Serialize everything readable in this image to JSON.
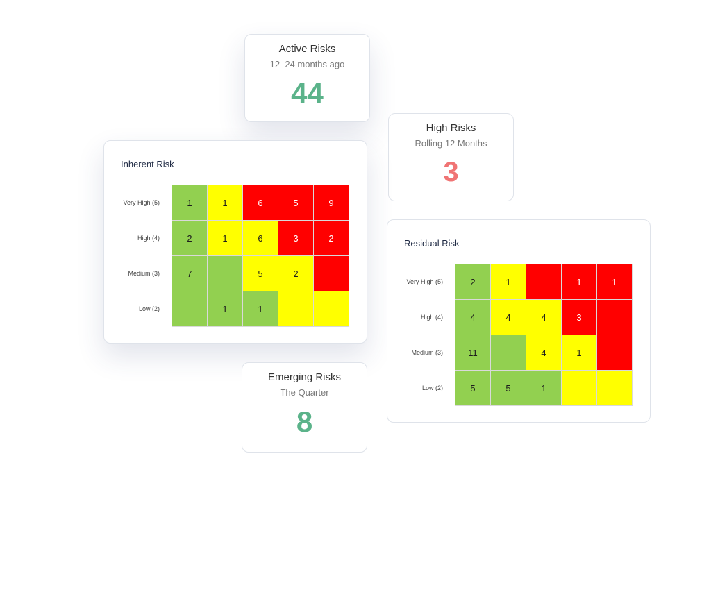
{
  "colors": {
    "green": "#92d050",
    "yellow": "#ffff00",
    "red": "#ff0000",
    "stat_green": "#5bb38a",
    "stat_red": "#f07474"
  },
  "active_risks": {
    "title": "Active Risks",
    "subtitle": "12–24 months ago",
    "value": "44"
  },
  "high_risks": {
    "title": "High Risks",
    "subtitle": "Rolling 12 Months",
    "value": "3"
  },
  "emerging_risks": {
    "title": "Emerging Risks",
    "subtitle": "The Quarter",
    "value": "8"
  },
  "inherent": {
    "title": "Inherent Risk",
    "rows": [
      {
        "label": "Very High (5)",
        "cells": [
          "1",
          "1",
          "6",
          "5",
          "9"
        ],
        "colors": [
          "g",
          "y",
          "r",
          "r",
          "r"
        ]
      },
      {
        "label": "High (4)",
        "cells": [
          "2",
          "1",
          "6",
          "3",
          "2"
        ],
        "colors": [
          "g",
          "y",
          "y",
          "r",
          "r"
        ]
      },
      {
        "label": "Medium (3)",
        "cells": [
          "7",
          "",
          "5",
          "2",
          ""
        ],
        "colors": [
          "g",
          "g",
          "y",
          "y",
          "r"
        ]
      },
      {
        "label": "Low (2)",
        "cells": [
          "",
          "1",
          "1",
          "",
          ""
        ],
        "colors": [
          "g",
          "g",
          "g",
          "y",
          "y"
        ]
      }
    ]
  },
  "residual": {
    "title": "Residual Risk",
    "rows": [
      {
        "label": "Very High (5)",
        "cells": [
          "2",
          "1",
          "",
          "1",
          "1"
        ],
        "colors": [
          "g",
          "y",
          "r",
          "r",
          "r"
        ]
      },
      {
        "label": "High (4)",
        "cells": [
          "4",
          "4",
          "4",
          "3",
          ""
        ],
        "colors": [
          "g",
          "y",
          "y",
          "r",
          "r"
        ]
      },
      {
        "label": "Medium (3)",
        "cells": [
          "11",
          "",
          "4",
          "1",
          ""
        ],
        "colors": [
          "g",
          "g",
          "y",
          "y",
          "r"
        ]
      },
      {
        "label": "Low (2)",
        "cells": [
          "5",
          "5",
          "1",
          "",
          ""
        ],
        "colors": [
          "g",
          "g",
          "g",
          "y",
          "y"
        ]
      }
    ]
  }
}
